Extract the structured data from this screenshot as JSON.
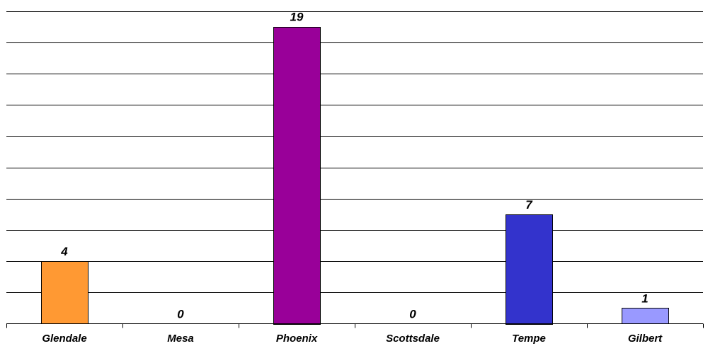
{
  "chart_data": {
    "type": "bar",
    "categories": [
      "Glendale",
      "Mesa",
      "Phoenix",
      "Scottsdale",
      "Tempe",
      "Gilbert"
    ],
    "values": [
      4,
      0,
      19,
      0,
      7,
      1
    ],
    "data_labels": [
      "4",
      "0",
      "19",
      "0",
      "7",
      "1"
    ],
    "colors": [
      "#ff9933",
      "#ffffff",
      "#990099",
      "#ffffff",
      "#3333cc",
      "#9999ff"
    ],
    "ylim": [
      0,
      20
    ],
    "grid": true,
    "legend": "none",
    "title": "",
    "xlabel": "",
    "ylabel": ""
  }
}
